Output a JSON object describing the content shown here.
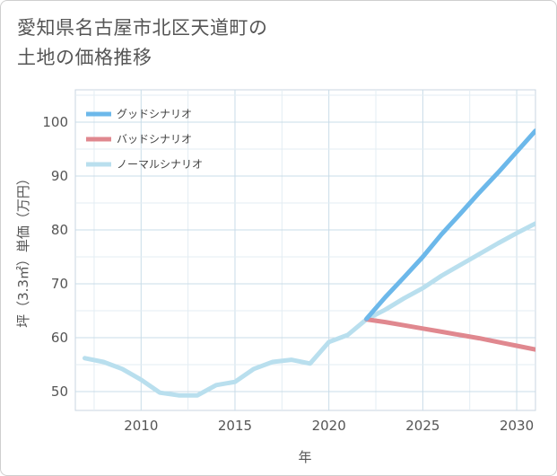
{
  "title": {
    "line1": "愛知県名古屋市北区天道町の",
    "line2": "土地の価格推移"
  },
  "chart_data": {
    "type": "line",
    "xlabel": "年",
    "ylabel": "坪（3.3㎡）単価（万円）",
    "xlim": [
      2006.5,
      2031
    ],
    "ylim": [
      46.5,
      106
    ],
    "x_ticks": [
      2010,
      2015,
      2020,
      2025,
      2030
    ],
    "y_ticks": [
      50,
      60,
      70,
      80,
      90,
      100
    ],
    "grid": true,
    "legend_position": "top-left",
    "series": [
      {
        "name": "グッドシナリオ",
        "color": "#6cb8ea",
        "width": 5,
        "x": [
          2022,
          2023,
          2024,
          2025,
          2026,
          2027,
          2028,
          2029,
          2030,
          2031
        ],
        "y": [
          63.5,
          67.5,
          71.2,
          75.0,
          79.2,
          83.0,
          86.9,
          90.6,
          94.5,
          98.4
        ]
      },
      {
        "name": "バッドシナリオ",
        "color": "#e0888f",
        "width": 5,
        "x": [
          2022,
          2023,
          2024,
          2025,
          2026,
          2027,
          2028,
          2029,
          2030,
          2031
        ],
        "y": [
          63.4,
          62.9,
          62.3,
          61.7,
          61.1,
          60.5,
          59.9,
          59.2,
          58.5,
          57.8
        ]
      },
      {
        "name": "ノーマルシナリオ",
        "color": "#b9dfee",
        "width": 5,
        "x": [
          2007,
          2008,
          2009,
          2010,
          2011,
          2012,
          2013,
          2014,
          2015,
          2016,
          2017,
          2018,
          2019,
          2020,
          2021,
          2022,
          2023,
          2024,
          2025,
          2026,
          2027,
          2028,
          2029,
          2030,
          2031
        ],
        "y": [
          56.2,
          55.5,
          54.2,
          52.2,
          49.8,
          49.3,
          49.3,
          51.2,
          51.8,
          54.2,
          55.5,
          55.9,
          55.2,
          59.2,
          60.5,
          63.4,
          65.2,
          67.3,
          69.2,
          71.5,
          73.5,
          75.5,
          77.5,
          79.4,
          81.2
        ]
      }
    ]
  }
}
